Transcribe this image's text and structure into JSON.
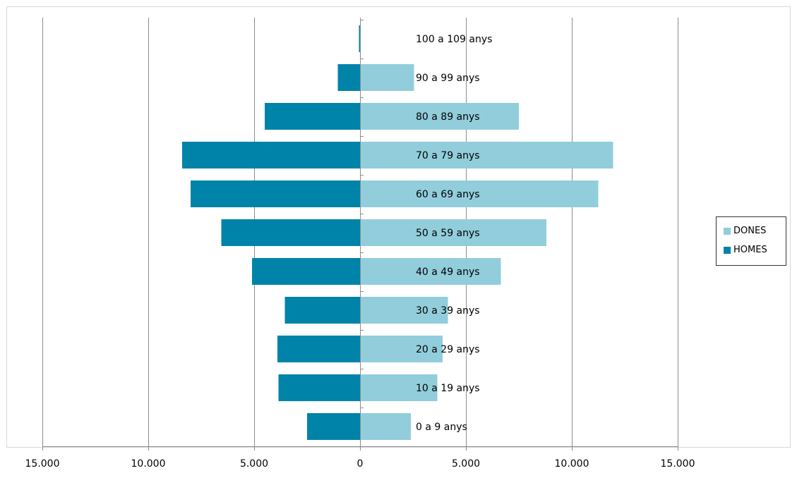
{
  "chart_data": {
    "type": "bar",
    "orientation": "horizontal",
    "categories": [
      "0 a 9 anys",
      "10 a 19 anys",
      "20 a 29 anys",
      "30 a 39 anys",
      "40 a 49 anys",
      "50 a 59 anys",
      "60 a 69 anys",
      "70 a 79 anys",
      "80 a 89 anys",
      "90 a 99 anys",
      "100 a 109 anys"
    ],
    "series": [
      {
        "name": "DONES",
        "color": "#92CDDC",
        "values": [
          2400,
          3650,
          3900,
          4150,
          6650,
          8800,
          11250,
          11950,
          7500,
          2550,
          0
        ]
      },
      {
        "name": "HOMES",
        "color": "#0083A8",
        "values": [
          2500,
          3850,
          3900,
          3550,
          5100,
          6550,
          8000,
          8400,
          4500,
          1050,
          50
        ]
      }
    ],
    "xlim": [
      -15000,
      15000
    ],
    "x_ticks": [
      -15000,
      -10000,
      -5000,
      0,
      5000,
      10000,
      15000
    ],
    "x_tick_labels": [
      "15.000",
      "10.000",
      "5.000",
      "0",
      "5.000",
      "10.000",
      "15.000"
    ],
    "grid": "vertical",
    "legend_position": "right",
    "title": "",
    "xlabel": "",
    "ylabel": ""
  }
}
